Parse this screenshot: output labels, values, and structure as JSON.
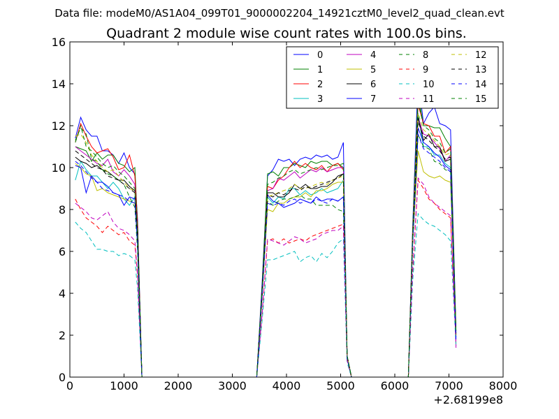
{
  "suptitle": "Data file: modeM0/AS1A04_099T01_9000002204_14921cztM0_level2_quad_clean.evt",
  "chart_data": {
    "type": "line",
    "title": "Quadrant 2 module wise count rates with 100.0s bins.",
    "xlabel": "",
    "ylabel": "",
    "x_offset_label": "+2.68199e8",
    "xlim": [
      0,
      8000
    ],
    "ylim": [
      0,
      16
    ],
    "x_ticks": [
      0,
      1000,
      2000,
      3000,
      4000,
      5000,
      6000,
      7000,
      8000
    ],
    "y_ticks": [
      0,
      2,
      4,
      6,
      8,
      10,
      12,
      14,
      16
    ],
    "x": [
      100,
      200,
      300,
      400,
      500,
      600,
      700,
      800,
      900,
      1000,
      1100,
      1200,
      1250,
      1330,
      3450,
      3550,
      3650,
      3750,
      3850,
      3950,
      4050,
      4150,
      4250,
      4350,
      4450,
      4550,
      4650,
      4750,
      4850,
      4950,
      5050,
      5120,
      5200,
      6250,
      6330,
      6430,
      6530,
      6630,
      6730,
      6830,
      6930,
      7030,
      7130
    ],
    "legend": {
      "location": "top-right",
      "ncol": 4
    },
    "series": [
      {
        "name": "0",
        "style": "solid",
        "color": "#0000ff",
        "values": [
          11.4,
          12.4,
          11.8,
          11.5,
          11.5,
          10.8,
          10.8,
          10.6,
          10.2,
          10.7,
          10.0,
          9.7,
          7.5,
          0,
          0,
          4.5,
          9.6,
          9.9,
          10.4,
          10.3,
          10.4,
          10.1,
          10.4,
          10.5,
          10.4,
          10.6,
          10.5,
          10.6,
          10.4,
          10.5,
          11.2,
          1.0,
          0,
          0,
          7.2,
          14.3,
          12.1,
          12.6,
          12.9,
          12.1,
          12.0,
          11.8,
          2.2
        ]
      },
      {
        "name": "1",
        "style": "solid",
        "color": "#008000",
        "values": [
          11.0,
          10.9,
          10.8,
          10.3,
          10.7,
          10.4,
          10.6,
          10.6,
          10.2,
          10.1,
          9.8,
          10.0,
          7.3,
          0,
          0,
          4.3,
          9.7,
          9.8,
          9.6,
          10.0,
          10.0,
          10.2,
          10.1,
          10.0,
          10.3,
          10.2,
          10.3,
          10.3,
          10.1,
          10.2,
          10.0,
          1.0,
          0,
          0,
          7.0,
          13.5,
          12.0,
          12.0,
          11.9,
          11.9,
          11.4,
          11.0,
          2.2
        ]
      },
      {
        "name": "2",
        "style": "solid",
        "color": "#ff0000",
        "values": [
          11.2,
          12.1,
          11.5,
          11.0,
          10.7,
          10.8,
          10.9,
          10.5,
          9.9,
          10.0,
          10.6,
          9.6,
          7.2,
          0,
          0,
          4.2,
          9.1,
          9.0,
          9.4,
          9.6,
          10.0,
          10.3,
          10.0,
          10.2,
          10.0,
          9.9,
          10.1,
          9.8,
          10.1,
          10.2,
          9.9,
          1.0,
          0,
          0,
          6.9,
          13.0,
          12.1,
          12.0,
          11.5,
          11.5,
          10.7,
          11.0,
          2.0
        ]
      },
      {
        "name": "3",
        "style": "solid",
        "color": "#00bfbf",
        "values": [
          9.4,
          10.3,
          9.9,
          9.6,
          9.6,
          9.3,
          9.0,
          9.3,
          9.0,
          8.5,
          8.2,
          8.6,
          6.2,
          0,
          0,
          4.0,
          8.6,
          8.3,
          8.6,
          8.5,
          9.0,
          9.0,
          8.7,
          8.9,
          8.7,
          8.8,
          9.0,
          8.8,
          8.9,
          9.0,
          9.4,
          1.0,
          0,
          0,
          6.5,
          12.6,
          11.0,
          11.0,
          10.6,
          10.6,
          10.2,
          10.0,
          1.9
        ]
      },
      {
        "name": "4",
        "style": "solid",
        "color": "#bf00bf",
        "values": [
          11.0,
          10.8,
          10.6,
          10.4,
          10.2,
          10.1,
          10.4,
          9.8,
          9.6,
          9.9,
          9.6,
          9.2,
          6.8,
          0,
          0,
          4.1,
          8.9,
          9.0,
          9.5,
          9.4,
          9.6,
          9.8,
          9.5,
          9.7,
          9.9,
          9.8,
          10.0,
          9.8,
          9.9,
          10.0,
          10.0,
          0.9,
          0,
          0,
          6.8,
          12.4,
          11.6,
          11.5,
          11.2,
          10.9,
          10.3,
          10.6,
          1.4
        ]
      },
      {
        "name": "5",
        "style": "solid",
        "color": "#bfbf00",
        "values": [
          10.2,
          10.0,
          9.7,
          9.6,
          8.9,
          9.0,
          8.8,
          8.7,
          8.6,
          8.5,
          8.4,
          8.3,
          6.5,
          0,
          0,
          3.9,
          8.0,
          7.9,
          8.3,
          8.3,
          8.5,
          8.6,
          8.6,
          8.8,
          8.6,
          8.9,
          8.9,
          9.0,
          9.2,
          9.3,
          9.3,
          0.9,
          0,
          0,
          6.4,
          10.8,
          9.8,
          9.6,
          9.5,
          9.6,
          9.4,
          9.3,
          2.0
        ]
      },
      {
        "name": "6",
        "style": "solid",
        "color": "#000000",
        "values": [
          10.5,
          10.3,
          10.2,
          10.0,
          10.1,
          9.9,
          9.8,
          9.6,
          9.4,
          9.4,
          9.1,
          8.9,
          6.9,
          0,
          0,
          4.1,
          8.8,
          8.8,
          8.6,
          8.6,
          8.8,
          9.2,
          9.0,
          9.2,
          9.0,
          9.0,
          9.1,
          9.1,
          9.3,
          9.6,
          9.7,
          1.0,
          0,
          0,
          6.7,
          12.4,
          11.3,
          11.6,
          11.0,
          11.0,
          10.3,
          10.4,
          2.1
        ]
      },
      {
        "name": "7",
        "style": "solid",
        "color": "#0000ff",
        "values": [
          10.1,
          10.0,
          8.8,
          9.6,
          9.3,
          9.3,
          9.1,
          8.8,
          8.7,
          8.2,
          8.6,
          8.5,
          6.3,
          0,
          0,
          4.0,
          8.7,
          8.4,
          8.3,
          8.1,
          8.2,
          8.3,
          8.5,
          8.4,
          8.3,
          8.6,
          8.4,
          8.5,
          8.5,
          8.4,
          8.6,
          0.9,
          0,
          0,
          6.5,
          11.9,
          11.2,
          11.0,
          10.7,
          10.5,
          10.1,
          9.9,
          1.9
        ]
      },
      {
        "name": "8",
        "style": "dashed",
        "color": "#008000",
        "values": [
          11.3,
          11.9,
          11.6,
          10.4,
          10.3,
          9.9,
          9.7,
          9.6,
          9.4,
          9.2,
          8.6,
          8.1,
          6.0,
          0,
          0,
          3.8,
          8.4,
          8.2,
          8.4,
          8.5,
          8.5,
          8.6,
          8.7,
          8.5,
          8.5,
          8.2,
          8.2,
          8.2,
          8.2,
          8.0,
          7.9,
          0.9,
          0,
          0,
          6.3,
          11.6,
          11.0,
          10.9,
          10.3,
          10.2,
          9.9,
          9.8,
          1.9
        ]
      },
      {
        "name": "9",
        "style": "dashed",
        "color": "#ff0000",
        "values": [
          8.5,
          8.0,
          7.6,
          7.4,
          7.2,
          6.9,
          7.2,
          7.0,
          6.8,
          6.9,
          6.5,
          6.3,
          4.8,
          0,
          0,
          3.0,
          6.5,
          6.6,
          6.4,
          6.6,
          6.4,
          6.5,
          6.6,
          6.5,
          6.7,
          6.8,
          6.9,
          7.0,
          7.1,
          7.2,
          7.3,
          0.8,
          0,
          0,
          5.0,
          9.4,
          9.0,
          8.5,
          8.3,
          8.0,
          7.8,
          7.6,
          1.6
        ]
      },
      {
        "name": "10",
        "style": "dashed",
        "color": "#00bfbf",
        "values": [
          7.4,
          7.1,
          6.9,
          6.5,
          6.1,
          6.1,
          6.0,
          6.0,
          5.8,
          5.9,
          5.8,
          5.6,
          4.2,
          0,
          0,
          2.7,
          5.6,
          5.6,
          5.7,
          5.8,
          5.9,
          6.0,
          5.5,
          5.7,
          5.8,
          5.5,
          5.9,
          5.7,
          6.0,
          6.4,
          6.6,
          0.7,
          0,
          0,
          4.6,
          7.8,
          7.5,
          7.3,
          7.2,
          7.0,
          6.8,
          6.5,
          1.5
        ]
      },
      {
        "name": "11",
        "style": "dashed",
        "color": "#bf00bf",
        "values": [
          8.3,
          8.1,
          7.9,
          7.6,
          7.5,
          7.7,
          7.9,
          7.4,
          7.1,
          7.0,
          6.8,
          6.5,
          4.9,
          0,
          0,
          3.0,
          6.6,
          6.5,
          6.4,
          6.3,
          6.5,
          6.7,
          6.6,
          6.4,
          6.5,
          6.6,
          6.8,
          6.9,
          7.0,
          7.0,
          7.2,
          0.8,
          0,
          0,
          5.1,
          9.5,
          9.2,
          8.6,
          8.3,
          8.1,
          7.9,
          7.7,
          1.5
        ]
      },
      {
        "name": "12",
        "style": "dashed",
        "color": "#bfbf00",
        "values": [
          11.5,
          11.6,
          11.2,
          10.6,
          10.3,
          10.0,
          9.8,
          9.9,
          9.6,
          9.3,
          9.0,
          8.9,
          6.6,
          0,
          0,
          4.0,
          8.6,
          8.7,
          8.8,
          8.9,
          9.0,
          9.2,
          9.0,
          9.0,
          9.1,
          9.2,
          9.3,
          9.2,
          9.4,
          9.5,
          9.6,
          1.0,
          0,
          0,
          6.6,
          12.6,
          11.8,
          11.6,
          11.3,
          11.0,
          10.6,
          10.7,
          2.0
        ]
      },
      {
        "name": "13",
        "style": "dashed",
        "color": "#000000",
        "values": [
          10.8,
          10.6,
          10.4,
          10.2,
          10.0,
          9.9,
          9.6,
          9.5,
          9.4,
          9.2,
          9.0,
          8.8,
          6.7,
          0,
          0,
          4.0,
          8.7,
          8.6,
          8.8,
          8.7,
          8.9,
          9.0,
          8.9,
          9.1,
          9.0,
          9.1,
          9.2,
          9.3,
          9.4,
          9.5,
          9.7,
          1.0,
          0,
          0,
          6.6,
          12.2,
          11.5,
          11.3,
          11.0,
          10.8,
          10.4,
          10.5,
          2.0
        ]
      },
      {
        "name": "14",
        "style": "dashed",
        "color": "#0000ff",
        "values": [
          10.3,
          10.1,
          9.8,
          9.5,
          9.3,
          9.0,
          8.9,
          8.8,
          8.7,
          8.6,
          8.4,
          8.3,
          6.4,
          0,
          0,
          3.9,
          8.3,
          8.2,
          8.3,
          8.2,
          8.4,
          8.5,
          8.3,
          8.4,
          8.3,
          8.5,
          8.4,
          8.3,
          8.5,
          8.4,
          8.6,
          0.9,
          0,
          0,
          6.4,
          11.6,
          10.9,
          10.7,
          10.5,
          10.3,
          10.0,
          9.8,
          1.8
        ]
      },
      {
        "name": "15",
        "style": "dashed",
        "color": "#008000",
        "values": [
          11.2,
          12.0,
          11.0,
          10.8,
          10.5,
          10.2,
          10.0,
          10.1,
          9.8,
          9.6,
          9.3,
          9.0,
          6.9,
          0,
          0,
          4.2,
          9.2,
          9.3,
          9.5,
          9.6,
          9.8,
          9.9,
          9.7,
          9.8,
          9.9,
          10.0,
          9.9,
          10.0,
          10.1,
          10.1,
          10.2,
          1.0,
          0,
          0,
          6.9,
          13.2,
          12.0,
          11.8,
          11.4,
          11.2,
          10.7,
          10.9,
          2.1
        ]
      }
    ]
  }
}
